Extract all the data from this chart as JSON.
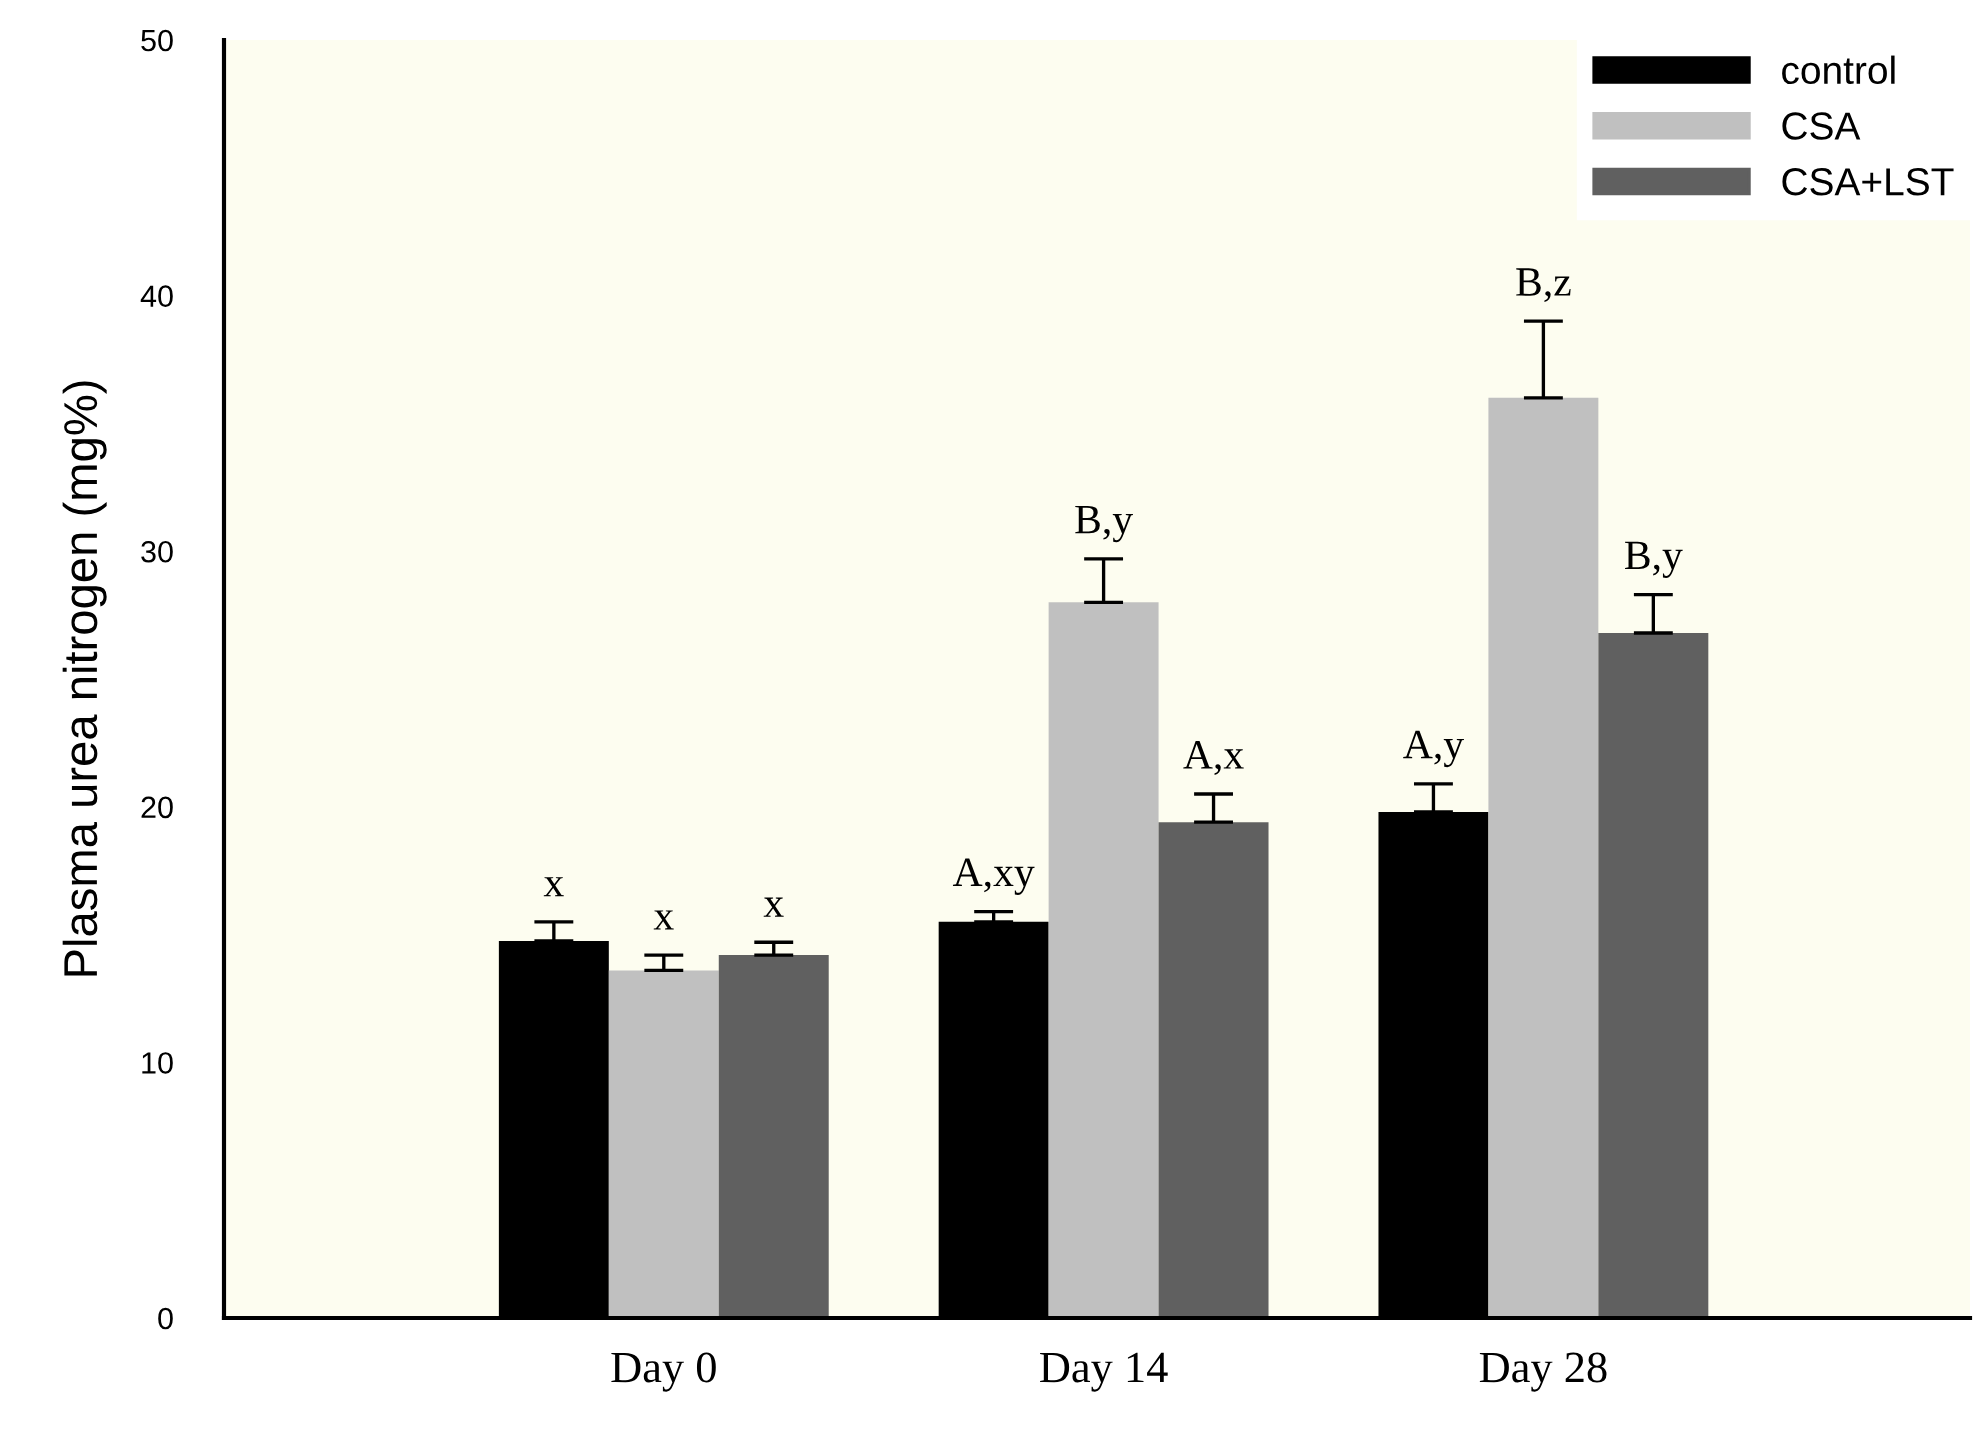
{
  "chart_data": {
    "type": "bar",
    "ylabel": "Plasma urea nitrogen (mg%)",
    "categories": [
      "Day 0",
      "Day 14",
      "Day 28"
    ],
    "series": [
      {
        "name": "control",
        "color": "#000000",
        "values": [
          14.75,
          15.5,
          19.8
        ],
        "errors": [
          [
            14.75,
            15.5
          ],
          [
            15.5,
            15.9
          ],
          [
            19.8,
            20.9
          ]
        ]
      },
      {
        "name": "CSA",
        "color": "#c0c0c0",
        "values": [
          13.6,
          28.0,
          36.0
        ],
        "errors": [
          [
            13.6,
            14.2
          ],
          [
            28.0,
            29.7
          ],
          [
            36.0,
            39.0
          ]
        ]
      },
      {
        "name": "CSA+LST",
        "color": "#606060",
        "values": [
          14.2,
          19.4,
          26.8
        ],
        "errors": [
          [
            14.2,
            14.7
          ],
          [
            19.4,
            20.5
          ],
          [
            26.8,
            28.3
          ]
        ]
      }
    ],
    "ylim": [
      0,
      50
    ],
    "yticks": [
      0,
      10,
      20,
      30,
      40,
      50
    ],
    "grid": false,
    "legend": "top right",
    "annotations": [
      "x",
      "x",
      "x",
      "A,xy",
      "B,y",
      "A,x",
      "A,y",
      "B,z",
      "B,y"
    ]
  }
}
